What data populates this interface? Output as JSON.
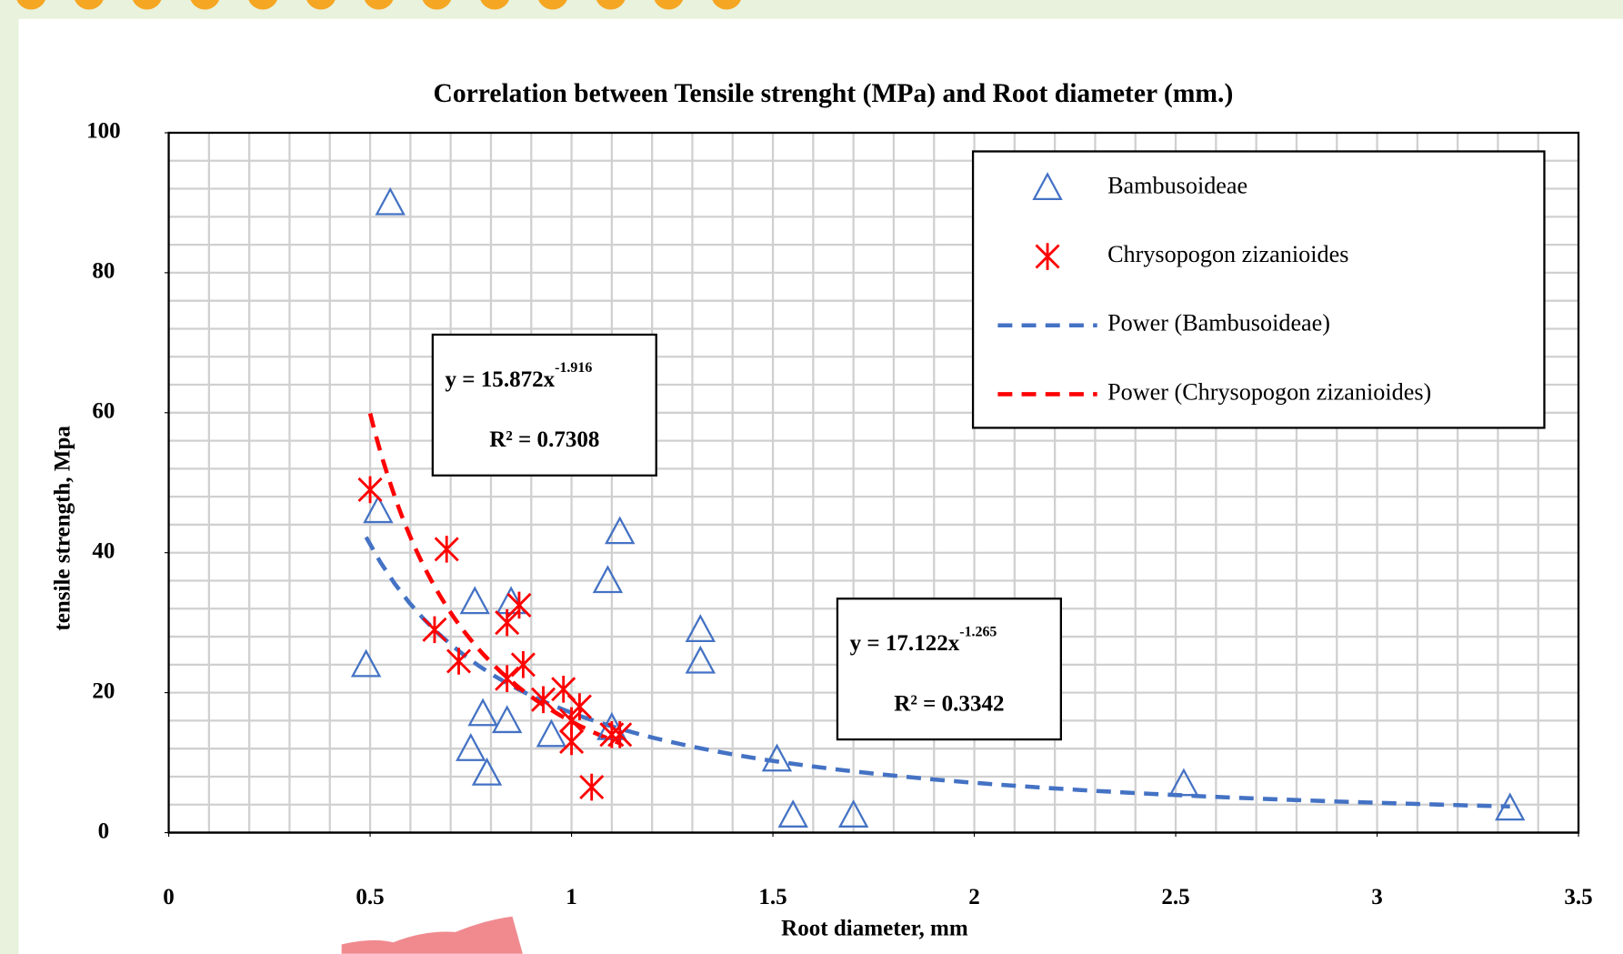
{
  "chart_data": {
    "type": "scatter",
    "title": "Correlation between Tensile strenght (MPa) and Root diameter (mm.)",
    "x_label": "Root diameter, mm",
    "y_label": "tensile strength, Mpa",
    "xlim": [
      0,
      3.5
    ],
    "ylim": [
      0,
      100
    ],
    "xticks": [
      0,
      0.5,
      1,
      1.5,
      2,
      2.5,
      3,
      3.5
    ],
    "yticks": [
      0,
      20,
      40,
      60,
      80,
      100
    ],
    "grid": true,
    "x_minor_step": 0.1,
    "y_minor_step": 4,
    "legend": "top-right",
    "series": [
      {
        "name": "Bambusoideae",
        "color": "#4472c4",
        "marker": "triangle",
        "x": [
          0.55,
          0.52,
          0.49,
          0.76,
          0.75,
          0.78,
          0.79,
          0.85,
          0.84,
          0.95,
          1.09,
          1.12,
          1.1,
          1.32,
          1.32,
          1.51,
          1.55,
          1.7,
          2.52,
          3.33
        ],
        "values": [
          90,
          46,
          24,
          33,
          12,
          17,
          8.5,
          33,
          16,
          14,
          36,
          43,
          15,
          29,
          24.5,
          10.5,
          2.5,
          2.5,
          7,
          3.5
        ]
      },
      {
        "name": "Chrysopogon zizanioides",
        "color": "#ff0000",
        "marker": "asterisk",
        "x": [
          0.5,
          0.69,
          0.66,
          0.72,
          0.84,
          0.87,
          0.88,
          0.84,
          0.93,
          0.98,
          1.0,
          1.0,
          1.02,
          1.05,
          1.1,
          1.12
        ],
        "values": [
          49,
          40.5,
          29,
          24.5,
          30,
          32.5,
          24,
          22,
          19,
          20.5,
          13,
          16,
          18,
          6.5,
          14,
          14
        ]
      }
    ],
    "trendlines": [
      {
        "name": "Power (Bambusoideae)",
        "color": "#4472c4",
        "a": 17.122,
        "b": -1.265,
        "xlim": [
          0.49,
          3.33
        ],
        "equation": "y = 17.122x",
        "exponent": "-1.265",
        "r2": "R² = 0.3342"
      },
      {
        "name": "Power (Chrysopogon zizanioides)",
        "color": "#ff0000",
        "a": 15.872,
        "b": -1.916,
        "xlim": [
          0.5,
          1.12
        ],
        "equation": "y = 15.872x",
        "exponent": "-1.916",
        "r2": "R² = 0.7308"
      }
    ]
  }
}
